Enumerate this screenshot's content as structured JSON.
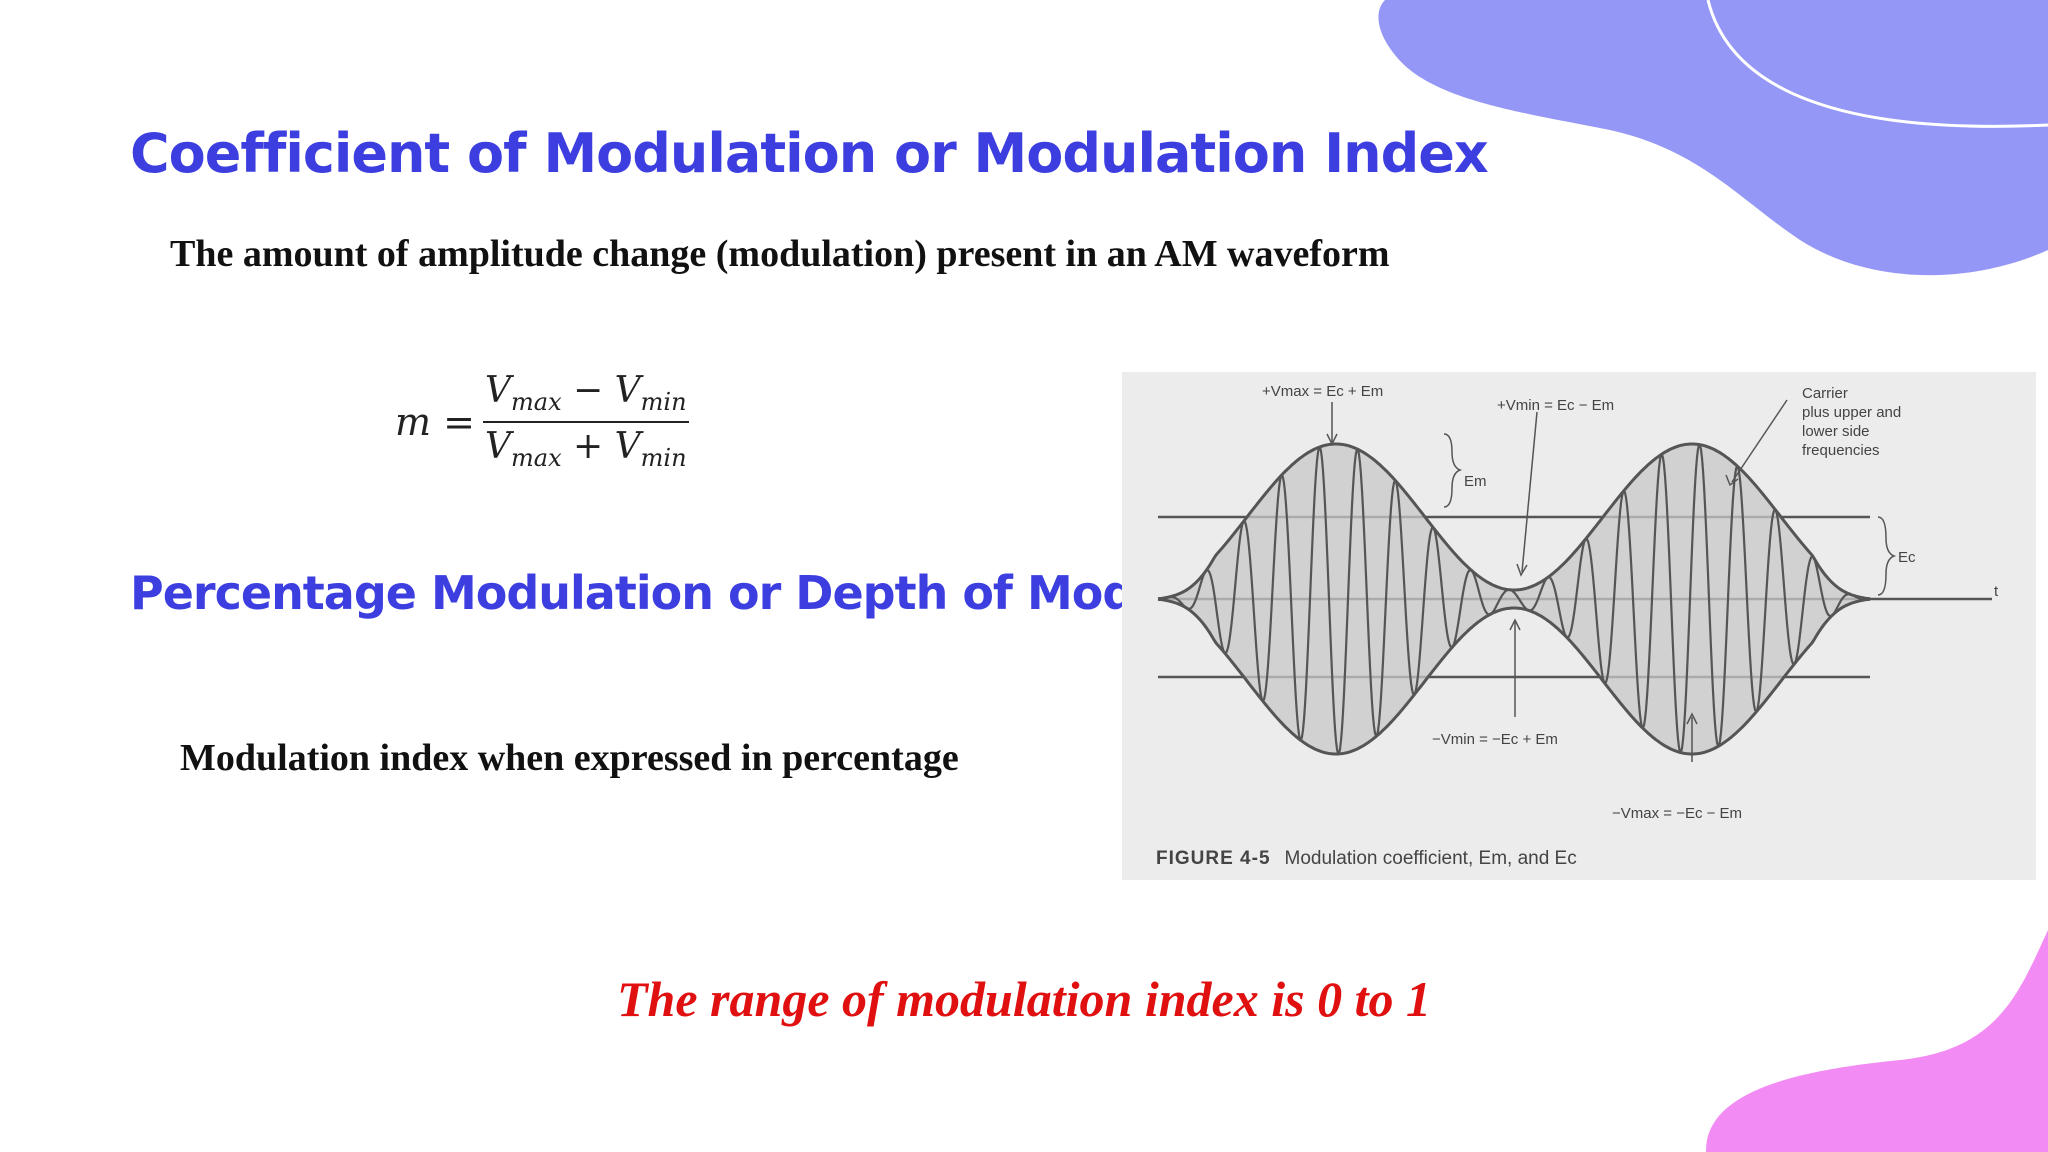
{
  "slide": {
    "title": "Coefficient of Modulation or Modulation Index",
    "definition": "The amount of amplitude change (modulation) present in an AM waveform",
    "subtitle": "Percentage Modulation or Depth of Modulation",
    "percentage_text": "Modulation index when expressed in percentage",
    "range_note": "The range of modulation index is 0 to 1"
  },
  "formula": {
    "lhs": "m =",
    "numerator": {
      "a": "V",
      "a_sub": "max",
      "op": " − ",
      "b": "V",
      "b_sub": "min"
    },
    "denominator": {
      "a": "V",
      "a_sub": "max",
      "op": " + ",
      "b": "V",
      "b_sub": "min"
    }
  },
  "figure": {
    "caption_number": "FIGURE 4-5",
    "caption_text": "Modulation coefficient, Em, and Ec",
    "labels": {
      "vmax_top": "+Vmax = Ec + Em",
      "vmin_top": "+Vmin = Ec − Em",
      "carrier": "Carrier\nplus upper and\nlower side\nfrequencies",
      "em": "Em",
      "ec": "Ec",
      "t": "t",
      "vmin_bottom": "−Vmin = −Ec + Em",
      "vmax_bottom": "−Vmax = −Ec − Em"
    }
  },
  "colors": {
    "heading": "#3c3ee0",
    "body_text": "#111111",
    "range_text": "#e01010",
    "blob_top": "#9497f5",
    "blob_bottom": "#f28cf4"
  }
}
